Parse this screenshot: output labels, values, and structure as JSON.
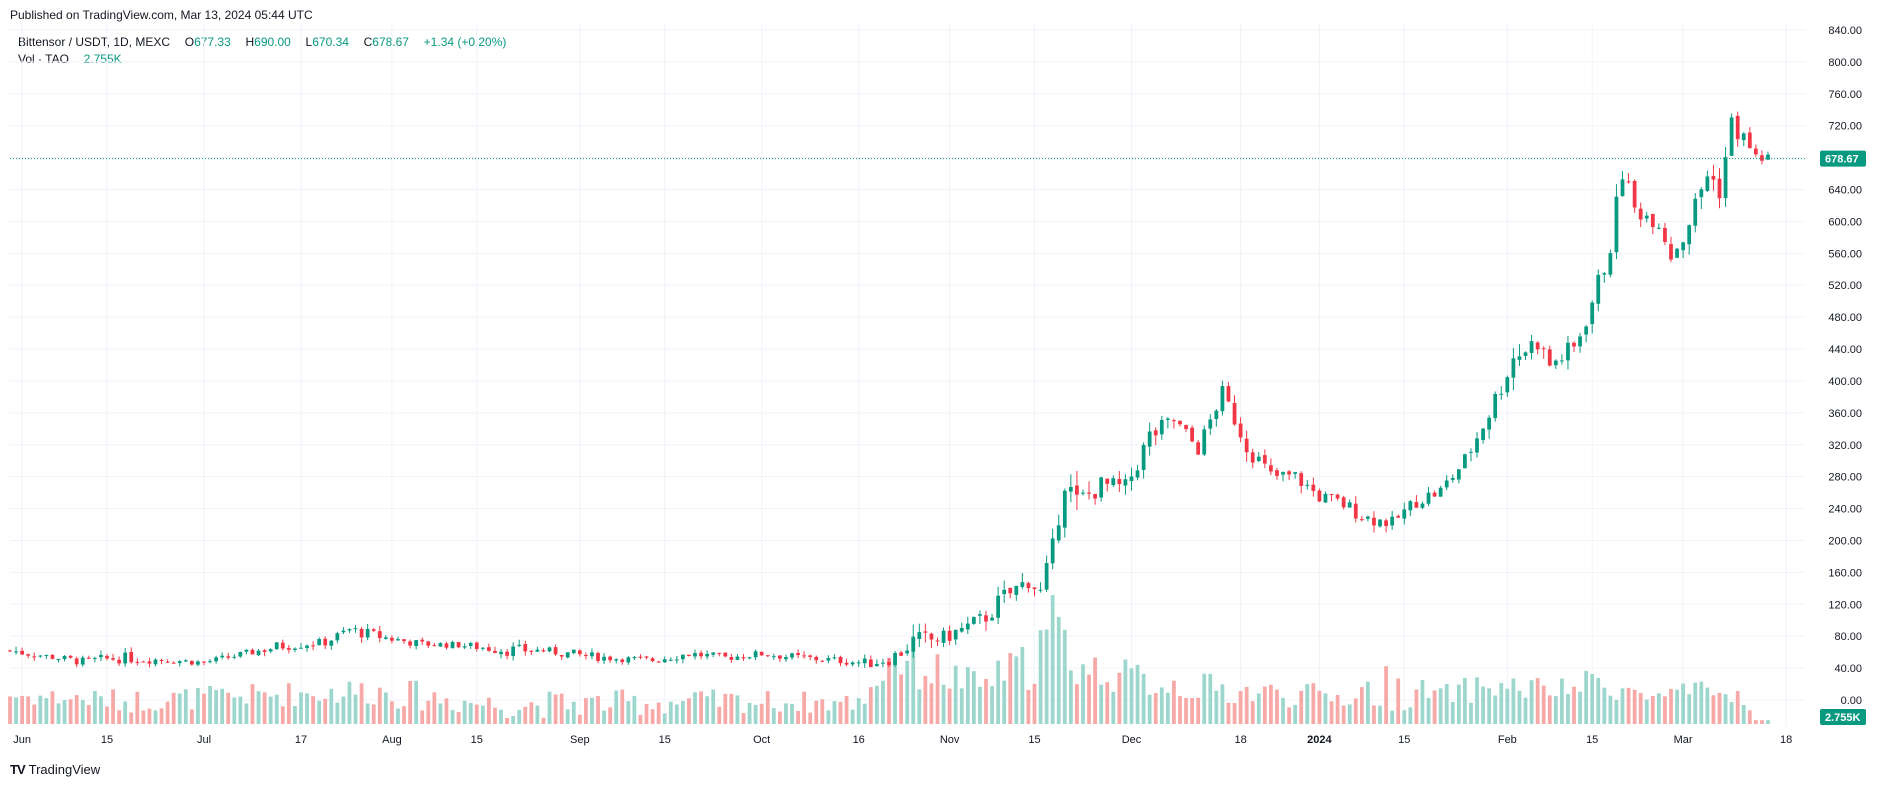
{
  "header": {
    "published": "Published on TradingView.com, Mar 13, 2024 05:44 UTC"
  },
  "legend": {
    "symbol": "Bittensor / USDT, 1D, MEXC",
    "open_label": "O",
    "open": "677.33",
    "high_label": "H",
    "high": "690.00",
    "low_label": "L",
    "low": "670.34",
    "close_label": "C",
    "close": "678.67",
    "change": "+1.34 (+0.20%)",
    "vol_label": "Vol · TAO",
    "vol_value": "2.755K"
  },
  "footer": {
    "logo_text": "TradingView",
    "logo_mark": "TV"
  },
  "colors": {
    "up": "#089981",
    "down": "#f23645",
    "up_vol": "#9cd6cd",
    "down_vol": "#f7a9a7",
    "grid": "#f0f3fa",
    "axis_text": "#131722"
  },
  "chart_data": {
    "type": "candlestick",
    "price_label": "678.67",
    "volume_label": "2.755K",
    "ylim": [
      0,
      840
    ],
    "y_ticks": [
      0,
      40,
      80,
      120,
      160,
      200,
      240,
      280,
      320,
      360,
      400,
      440,
      480,
      520,
      560,
      600,
      640,
      680,
      720,
      760,
      800,
      840
    ],
    "y_tick_labels": [
      "0.00",
      "40.00",
      "80.00",
      "120.00",
      "160.00",
      "200.00",
      "240.00",
      "280.00",
      "320.00",
      "360.00",
      "400.00",
      "440.00",
      "480.00",
      "520.00",
      "560.00",
      "600.00",
      "640.00",
      "680.00",
      "720.00",
      "760.00",
      "800.00",
      "840.00"
    ],
    "x_ticks": [
      {
        "label": "Jun",
        "index": 2
      },
      {
        "label": "15",
        "index": 16
      },
      {
        "label": "Jul",
        "index": 32
      },
      {
        "label": "17",
        "index": 48
      },
      {
        "label": "Aug",
        "index": 63
      },
      {
        "label": "15",
        "index": 77
      },
      {
        "label": "Sep",
        "index": 94
      },
      {
        "label": "15",
        "index": 108
      },
      {
        "label": "Oct",
        "index": 124
      },
      {
        "label": "16",
        "index": 140
      },
      {
        "label": "Nov",
        "index": 155
      },
      {
        "label": "15",
        "index": 169
      },
      {
        "label": "Dec",
        "index": 185
      },
      {
        "label": "18",
        "index": 203
      },
      {
        "label": "2024",
        "index": 216
      },
      {
        "label": "15",
        "index": 230
      },
      {
        "label": "Feb",
        "index": 247
      },
      {
        "label": "15",
        "index": 261
      },
      {
        "label": "Mar",
        "index": 276
      },
      {
        "label": "18",
        "index": 293
      }
    ],
    "anchors": [
      [
        0,
        62,
        9
      ],
      [
        6,
        55,
        5
      ],
      [
        12,
        48,
        7
      ],
      [
        18,
        53,
        9
      ],
      [
        26,
        50,
        6
      ],
      [
        32,
        47,
        5
      ],
      [
        40,
        60,
        6
      ],
      [
        46,
        70,
        10
      ],
      [
        52,
        72,
        6
      ],
      [
        56,
        88,
        10
      ],
      [
        62,
        78,
        8
      ],
      [
        68,
        70,
        6
      ],
      [
        74,
        69,
        5
      ],
      [
        82,
        63,
        10
      ],
      [
        88,
        62,
        6
      ],
      [
        94,
        56,
        8
      ],
      [
        100,
        52,
        5
      ],
      [
        106,
        50,
        6
      ],
      [
        112,
        58,
        7
      ],
      [
        118,
        53,
        6
      ],
      [
        124,
        58,
        6
      ],
      [
        130,
        53,
        7
      ],
      [
        136,
        50,
        6
      ],
      [
        142,
        46,
        8
      ],
      [
        146,
        55,
        14
      ],
      [
        148,
        70,
        22
      ],
      [
        154,
        78,
        12
      ],
      [
        160,
        98,
        16
      ],
      [
        164,
        128,
        18
      ],
      [
        168,
        150,
        14
      ],
      [
        170,
        135,
        12
      ],
      [
        172,
        190,
        16
      ],
      [
        174,
        275,
        20
      ],
      [
        176,
        245,
        25
      ],
      [
        180,
        270,
        14
      ],
      [
        184,
        265,
        16
      ],
      [
        188,
        330,
        18
      ],
      [
        192,
        350,
        14
      ],
      [
        196,
        315,
        12
      ],
      [
        200,
        385,
        12
      ],
      [
        204,
        320,
        16
      ],
      [
        208,
        280,
        14
      ],
      [
        212,
        280,
        12
      ],
      [
        216,
        255,
        12
      ],
      [
        220,
        245,
        12
      ],
      [
        224,
        228,
        12
      ],
      [
        228,
        222,
        10
      ],
      [
        232,
        250,
        12
      ],
      [
        236,
        262,
        12
      ],
      [
        240,
        300,
        14
      ],
      [
        244,
        360,
        16
      ],
      [
        248,
        430,
        20
      ],
      [
        252,
        450,
        18
      ],
      [
        254,
        420,
        14
      ],
      [
        258,
        440,
        20
      ],
      [
        262,
        520,
        22
      ],
      [
        264,
        570,
        18
      ],
      [
        266,
        665,
        22
      ],
      [
        268,
        615,
        14
      ],
      [
        272,
        600,
        14
      ],
      [
        274,
        560,
        18
      ],
      [
        276,
        580,
        16
      ],
      [
        278,
        620,
        18
      ],
      [
        280,
        660,
        22
      ],
      [
        282,
        640,
        18
      ],
      [
        284,
        720,
        24
      ],
      [
        286,
        705,
        12
      ],
      [
        288,
        680,
        10
      ]
    ],
    "volume_anchors": [
      [
        0,
        30,
        12
      ],
      [
        20,
        24,
        14
      ],
      [
        40,
        30,
        14
      ],
      [
        60,
        35,
        18
      ],
      [
        80,
        20,
        16
      ],
      [
        100,
        22,
        16
      ],
      [
        120,
        24,
        14
      ],
      [
        140,
        22,
        12
      ],
      [
        146,
        75,
        40
      ],
      [
        150,
        60,
        30
      ],
      [
        160,
        40,
        16
      ],
      [
        164,
        55,
        20
      ],
      [
        168,
        62,
        30
      ],
      [
        172,
        100,
        55
      ],
      [
        176,
        60,
        25
      ],
      [
        184,
        50,
        20
      ],
      [
        188,
        45,
        22
      ],
      [
        200,
        35,
        18
      ],
      [
        220,
        28,
        14
      ],
      [
        226,
        38,
        30
      ],
      [
        236,
        30,
        12
      ],
      [
        244,
        40,
        18
      ],
      [
        256,
        35,
        14
      ],
      [
        262,
        45,
        18
      ],
      [
        270,
        28,
        12
      ],
      [
        280,
        33,
        14
      ],
      [
        286,
        28,
        10
      ],
      [
        288,
        4,
        0
      ]
    ],
    "volume_scale_max": 165
  }
}
